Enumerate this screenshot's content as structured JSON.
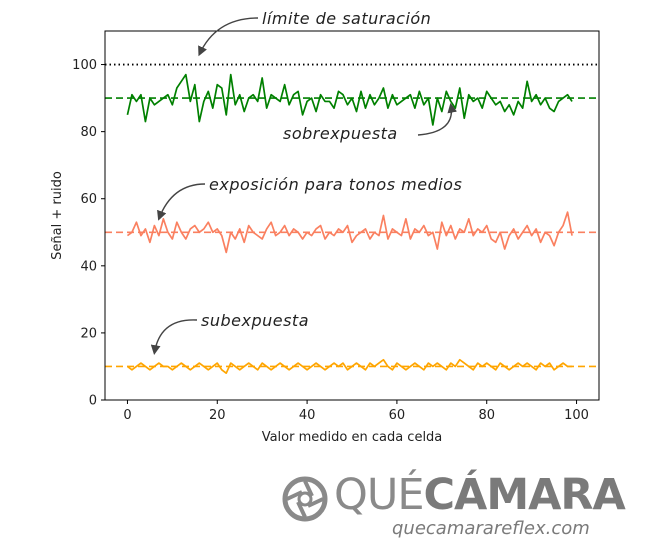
{
  "chart_data": {
    "type": "line",
    "title": "",
    "xlabel": "Valor medido en cada celda",
    "ylabel": "Señal + ruido",
    "xlim": [
      -5,
      105
    ],
    "ylim": [
      0,
      110
    ],
    "x_ticks": [
      0,
      20,
      40,
      60,
      80,
      100
    ],
    "y_ticks": [
      0,
      20,
      40,
      60,
      80,
      100
    ],
    "grid": false,
    "x": [
      0,
      1,
      2,
      3,
      4,
      5,
      6,
      7,
      8,
      9,
      10,
      11,
      12,
      13,
      14,
      15,
      16,
      17,
      18,
      19,
      20,
      21,
      22,
      23,
      24,
      25,
      26,
      27,
      28,
      29,
      30,
      31,
      32,
      33,
      34,
      35,
      36,
      37,
      38,
      39,
      40,
      41,
      42,
      43,
      44,
      45,
      46,
      47,
      48,
      49,
      50,
      51,
      52,
      53,
      54,
      55,
      56,
      57,
      58,
      59,
      60,
      61,
      62,
      63,
      64,
      65,
      66,
      67,
      68,
      69,
      70,
      71,
      72,
      73,
      74,
      75,
      76,
      77,
      78,
      79,
      80,
      81,
      82,
      83,
      84,
      85,
      86,
      87,
      88,
      89,
      90,
      91,
      92,
      93,
      94,
      95,
      96,
      97,
      98,
      99
    ],
    "series": [
      {
        "color": "#008000",
        "values": [
          85,
          91,
          89,
          91,
          83,
          90,
          88,
          89,
          90,
          91,
          88,
          93,
          95,
          97,
          89,
          94,
          83,
          89,
          92,
          87,
          94,
          93,
          85,
          97,
          88,
          91,
          86,
          90,
          91,
          89,
          96,
          87,
          91,
          90,
          89,
          94,
          88,
          91,
          92,
          85,
          89,
          90,
          86,
          91,
          89,
          89,
          87,
          92,
          91,
          88,
          90,
          86,
          92,
          87,
          91,
          88,
          90,
          93,
          87,
          91,
          88,
          89,
          90,
          91,
          87,
          92,
          88,
          90,
          82,
          90,
          86,
          92,
          89,
          87,
          93,
          84,
          91,
          89,
          90,
          87,
          92,
          90,
          88,
          89,
          86,
          88,
          85,
          89,
          87,
          95,
          89,
          91,
          88,
          90,
          87,
          86,
          89,
          90,
          91,
          89
        ]
      },
      {
        "color": "#fa8060",
        "values": [
          49,
          50,
          53,
          49,
          51,
          47,
          52,
          49,
          54,
          50,
          48,
          53,
          50,
          48,
          51,
          52,
          50,
          51,
          53,
          50,
          51,
          49,
          44,
          50,
          48,
          51,
          47,
          52,
          50,
          49,
          48,
          51,
          53,
          49,
          50,
          52,
          49,
          51,
          50,
          48,
          50,
          49,
          51,
          52,
          48,
          50,
          49,
          51,
          50,
          52,
          47,
          49,
          50,
          51,
          48,
          50,
          49,
          55,
          48,
          51,
          50,
          49,
          54,
          48,
          51,
          50,
          52,
          49,
          50,
          45,
          53,
          49,
          52,
          48,
          51,
          50,
          54,
          49,
          51,
          50,
          52,
          48,
          47,
          50,
          45,
          49,
          51,
          48,
          50,
          52,
          49,
          51,
          47,
          50,
          49,
          46,
          50,
          52,
          56,
          49
        ]
      },
      {
        "color": "#ffa500",
        "values": [
          10,
          9,
          10,
          11,
          10,
          9,
          10,
          11,
          10,
          10,
          9,
          10,
          11,
          10,
          9,
          10,
          11,
          10,
          9,
          10,
          11,
          9,
          8,
          11,
          10,
          9,
          10,
          11,
          10,
          9,
          11,
          10,
          9,
          10,
          11,
          10,
          9,
          10,
          11,
          10,
          9,
          10,
          11,
          10,
          9,
          10,
          11,
          10,
          11,
          9,
          10,
          11,
          10,
          9,
          11,
          10,
          11,
          12,
          10,
          9,
          11,
          10,
          9,
          10,
          11,
          10,
          9,
          11,
          10,
          11,
          10,
          9,
          11,
          10,
          12,
          11,
          10,
          9,
          11,
          10,
          11,
          10,
          9,
          11,
          10,
          9,
          10,
          11,
          10,
          11,
          10,
          9,
          11,
          10,
          11,
          9,
          10,
          11,
          10,
          10
        ]
      }
    ],
    "reference_lines": [
      {
        "y": 100,
        "style": "dotted",
        "color": "#000000"
      },
      {
        "y": 90,
        "style": "dashed",
        "color": "#008000"
      },
      {
        "y": 50,
        "style": "dashed",
        "color": "#fa8060"
      },
      {
        "y": 10,
        "style": "dashed",
        "color": "#ffa500"
      }
    ],
    "annotations": [
      {
        "text": "límite de saturación",
        "arrow_to": [
          16,
          103
        ]
      },
      {
        "text": "sobrexpuesta",
        "arrow_to": [
          72,
          88
        ]
      },
      {
        "text": "exposición para tonos medios",
        "arrow_to": [
          7,
          54
        ]
      },
      {
        "text": "subexpuesta",
        "arrow_to": [
          6,
          14
        ]
      }
    ]
  },
  "watermark": {
    "brand_regular": "QUÉ",
    "brand_bold": "CÁMARA",
    "url": "quecamarareflex.com",
    "color": "#808080"
  }
}
